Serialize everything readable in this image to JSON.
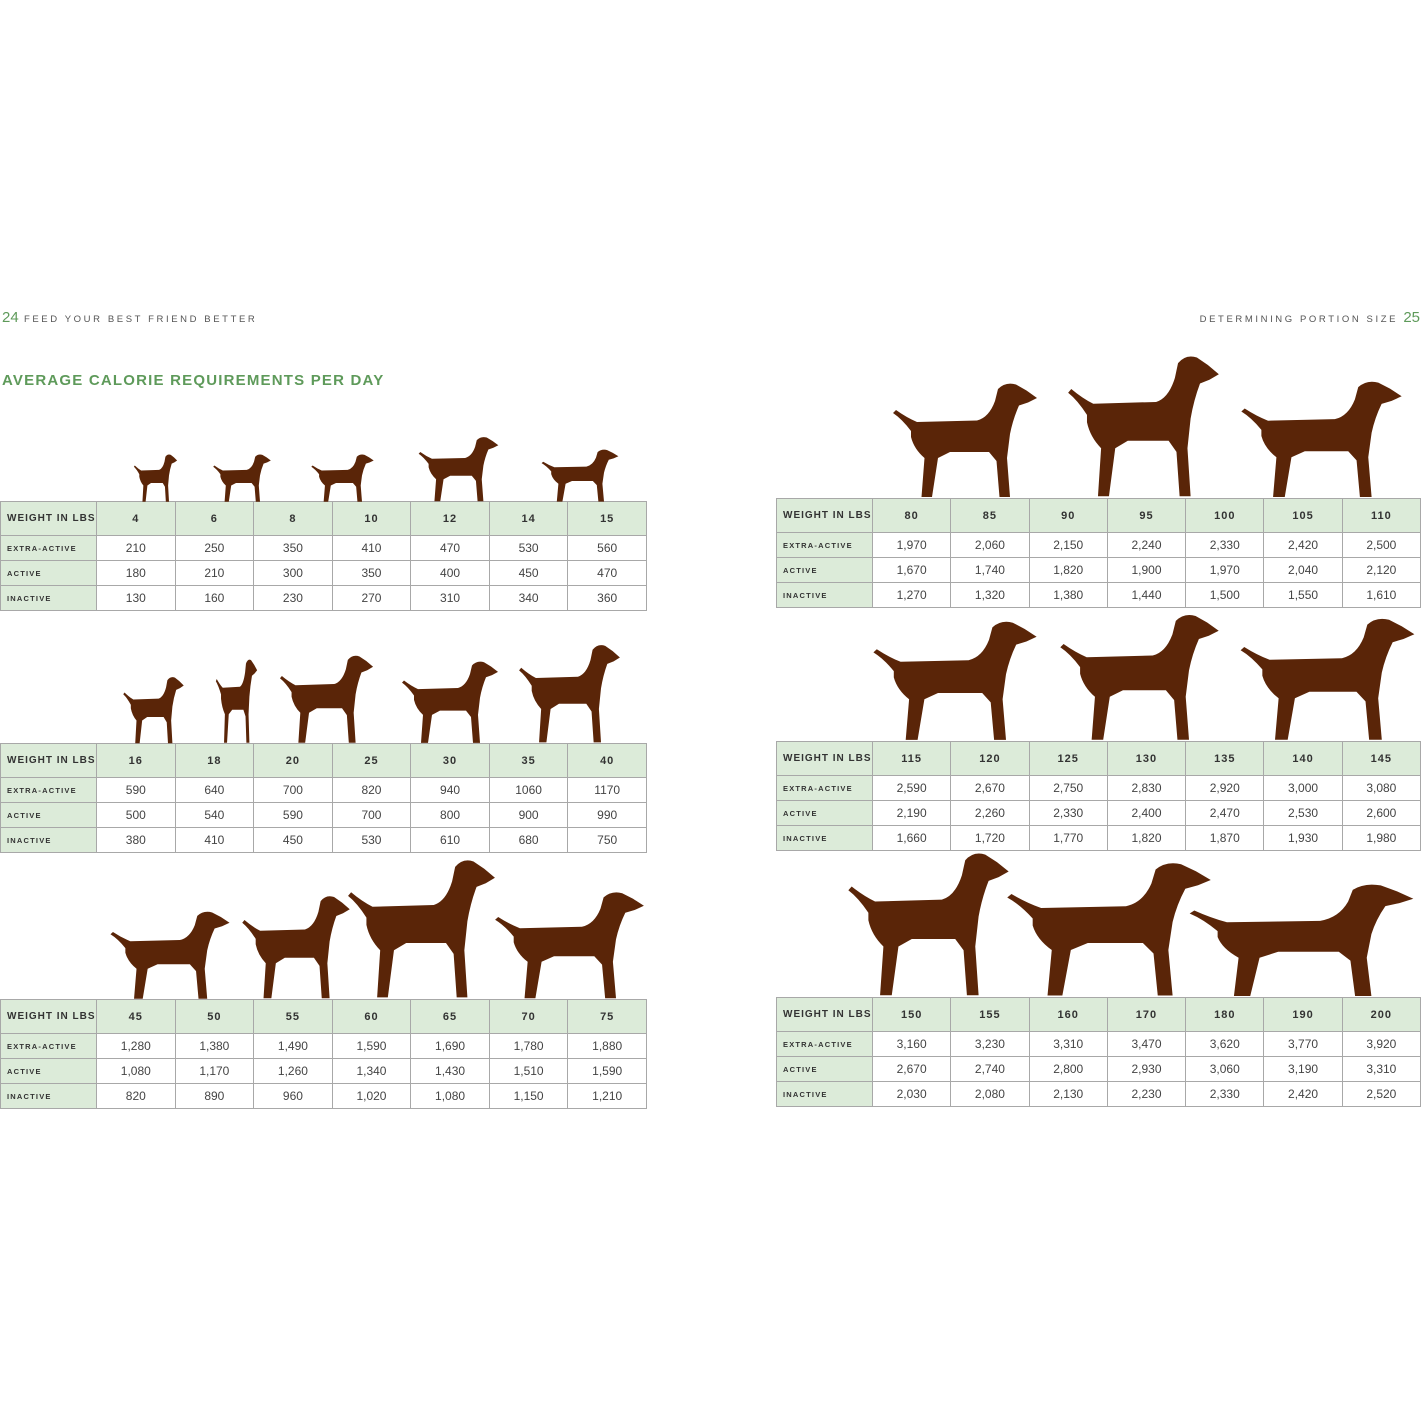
{
  "left_page": {
    "number": "24",
    "running_head": "FEED YOUR BEST FRIEND BETTER",
    "title": "AVERAGE CALORIE REQUIREMENTS PER DAY"
  },
  "right_page": {
    "number": "25",
    "running_head": "DETERMINING PORTION SIZE"
  },
  "row_labels": {
    "weight": "WEIGHT IN LBS",
    "extra_active": "EXTRA-ACTIVE",
    "active": "ACTIVE",
    "inactive": "INACTIVE"
  },
  "colors": {
    "accent_green": "#5e9a5a",
    "header_fill": "#dcebd9",
    "silhouette": "#5a2508"
  },
  "tables": [
    {
      "weights": [
        "4",
        "6",
        "8",
        "10",
        "12",
        "14",
        "15"
      ],
      "extra_active": [
        "210",
        "250",
        "350",
        "410",
        "470",
        "530",
        "560"
      ],
      "active": [
        "180",
        "210",
        "300",
        "350",
        "400",
        "450",
        "470"
      ],
      "inactive": [
        "130",
        "160",
        "230",
        "270",
        "310",
        "340",
        "360"
      ]
    },
    {
      "weights": [
        "16",
        "18",
        "20",
        "25",
        "30",
        "35",
        "40"
      ],
      "extra_active": [
        "590",
        "640",
        "700",
        "820",
        "940",
        "1060",
        "1170"
      ],
      "active": [
        "500",
        "540",
        "590",
        "700",
        "800",
        "900",
        "990"
      ],
      "inactive": [
        "380",
        "410",
        "450",
        "530",
        "610",
        "680",
        "750"
      ]
    },
    {
      "weights": [
        "45",
        "50",
        "55",
        "60",
        "65",
        "70",
        "75"
      ],
      "extra_active": [
        "1,280",
        "1,380",
        "1,490",
        "1,590",
        "1,690",
        "1,780",
        "1,880"
      ],
      "active": [
        "1,080",
        "1,170",
        "1,260",
        "1,340",
        "1,430",
        "1,510",
        "1,590"
      ],
      "inactive": [
        "820",
        "890",
        "960",
        "1,020",
        "1,080",
        "1,150",
        "1,210"
      ]
    },
    {
      "weights": [
        "80",
        "85",
        "90",
        "95",
        "100",
        "105",
        "110"
      ],
      "extra_active": [
        "1,970",
        "2,060",
        "2,150",
        "2,240",
        "2,330",
        "2,420",
        "2,500"
      ],
      "active": [
        "1,670",
        "1,740",
        "1,820",
        "1,900",
        "1,970",
        "2,040",
        "2,120"
      ],
      "inactive": [
        "1,270",
        "1,320",
        "1,380",
        "1,440",
        "1,500",
        "1,550",
        "1,610"
      ]
    },
    {
      "weights": [
        "115",
        "120",
        "125",
        "130",
        "135",
        "140",
        "145"
      ],
      "extra_active": [
        "2,590",
        "2,670",
        "2,750",
        "2,830",
        "2,920",
        "3,000",
        "3,080"
      ],
      "active": [
        "2,190",
        "2,260",
        "2,330",
        "2,400",
        "2,470",
        "2,530",
        "2,600"
      ],
      "inactive": [
        "1,660",
        "1,720",
        "1,770",
        "1,820",
        "1,870",
        "1,930",
        "1,980"
      ]
    },
    {
      "weights": [
        "150",
        "155",
        "160",
        "170",
        "180",
        "190",
        "200"
      ],
      "extra_active": [
        "3,160",
        "3,230",
        "3,310",
        "3,470",
        "3,620",
        "3,770",
        "3,920"
      ],
      "active": [
        "2,670",
        "2,740",
        "2,800",
        "2,930",
        "3,060",
        "3,190",
        "3,310"
      ],
      "inactive": [
        "2,030",
        "2,080",
        "2,130",
        "2,230",
        "2,330",
        "2,420",
        "2,520"
      ]
    }
  ]
}
